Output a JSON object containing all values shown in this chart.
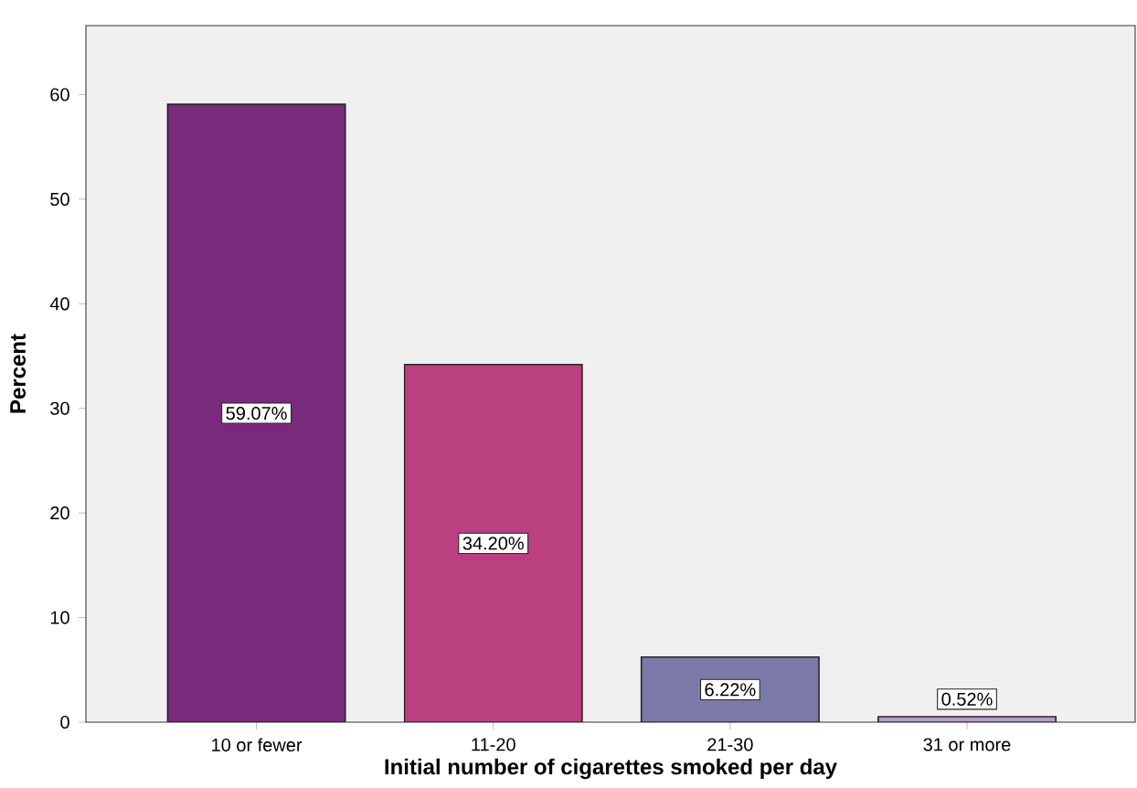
{
  "chart_data": {
    "type": "bar",
    "xlabel": "Initial number of cigarettes smoked per day",
    "ylabel": "Percent",
    "categories": [
      "10 or fewer",
      "11-20",
      "21-30",
      "31 or more"
    ],
    "values": [
      59.07,
      34.2,
      6.22,
      0.52
    ],
    "value_labels": [
      "59.07%",
      "34.20%",
      "6.22%",
      "0.52%"
    ],
    "colors": [
      "#7a2a7a",
      "#bb4080",
      "#7b7aa8",
      "#b49ccc"
    ],
    "ylim": [
      0,
      66.6
    ],
    "yticks": [
      0,
      10,
      20,
      30,
      40,
      50,
      60
    ],
    "grid": false
  }
}
